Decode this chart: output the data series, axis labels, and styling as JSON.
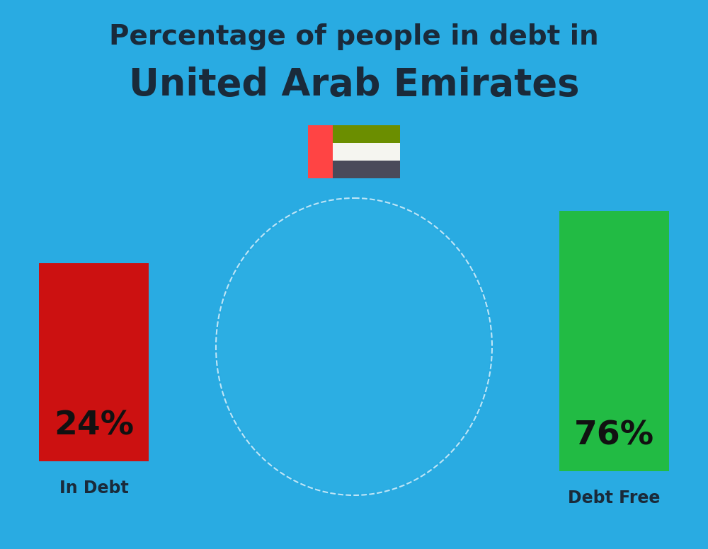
{
  "title_line1": "Percentage of people in debt in",
  "title_line2": "United Arab Emirates",
  "background_color": "#29ABE2",
  "title_color": "#1a2a3a",
  "title_fontsize1": 28,
  "title_fontsize2": 38,
  "bar1_label": "In Debt",
  "bar2_label": "Debt Free",
  "bar1_pct": "24%",
  "bar2_pct": "76%",
  "bar1_color": "#CC1111",
  "bar2_color": "#22BB44",
  "pct_fontsize": 34,
  "label_fontsize": 17,
  "label_color": "#1a2a3a",
  "pct_color": "#111111",
  "flag_red": "#FF4444",
  "flag_green": "#6B8E00",
  "flag_white": "#F5F5F0",
  "flag_dark": "#4A4A5A"
}
